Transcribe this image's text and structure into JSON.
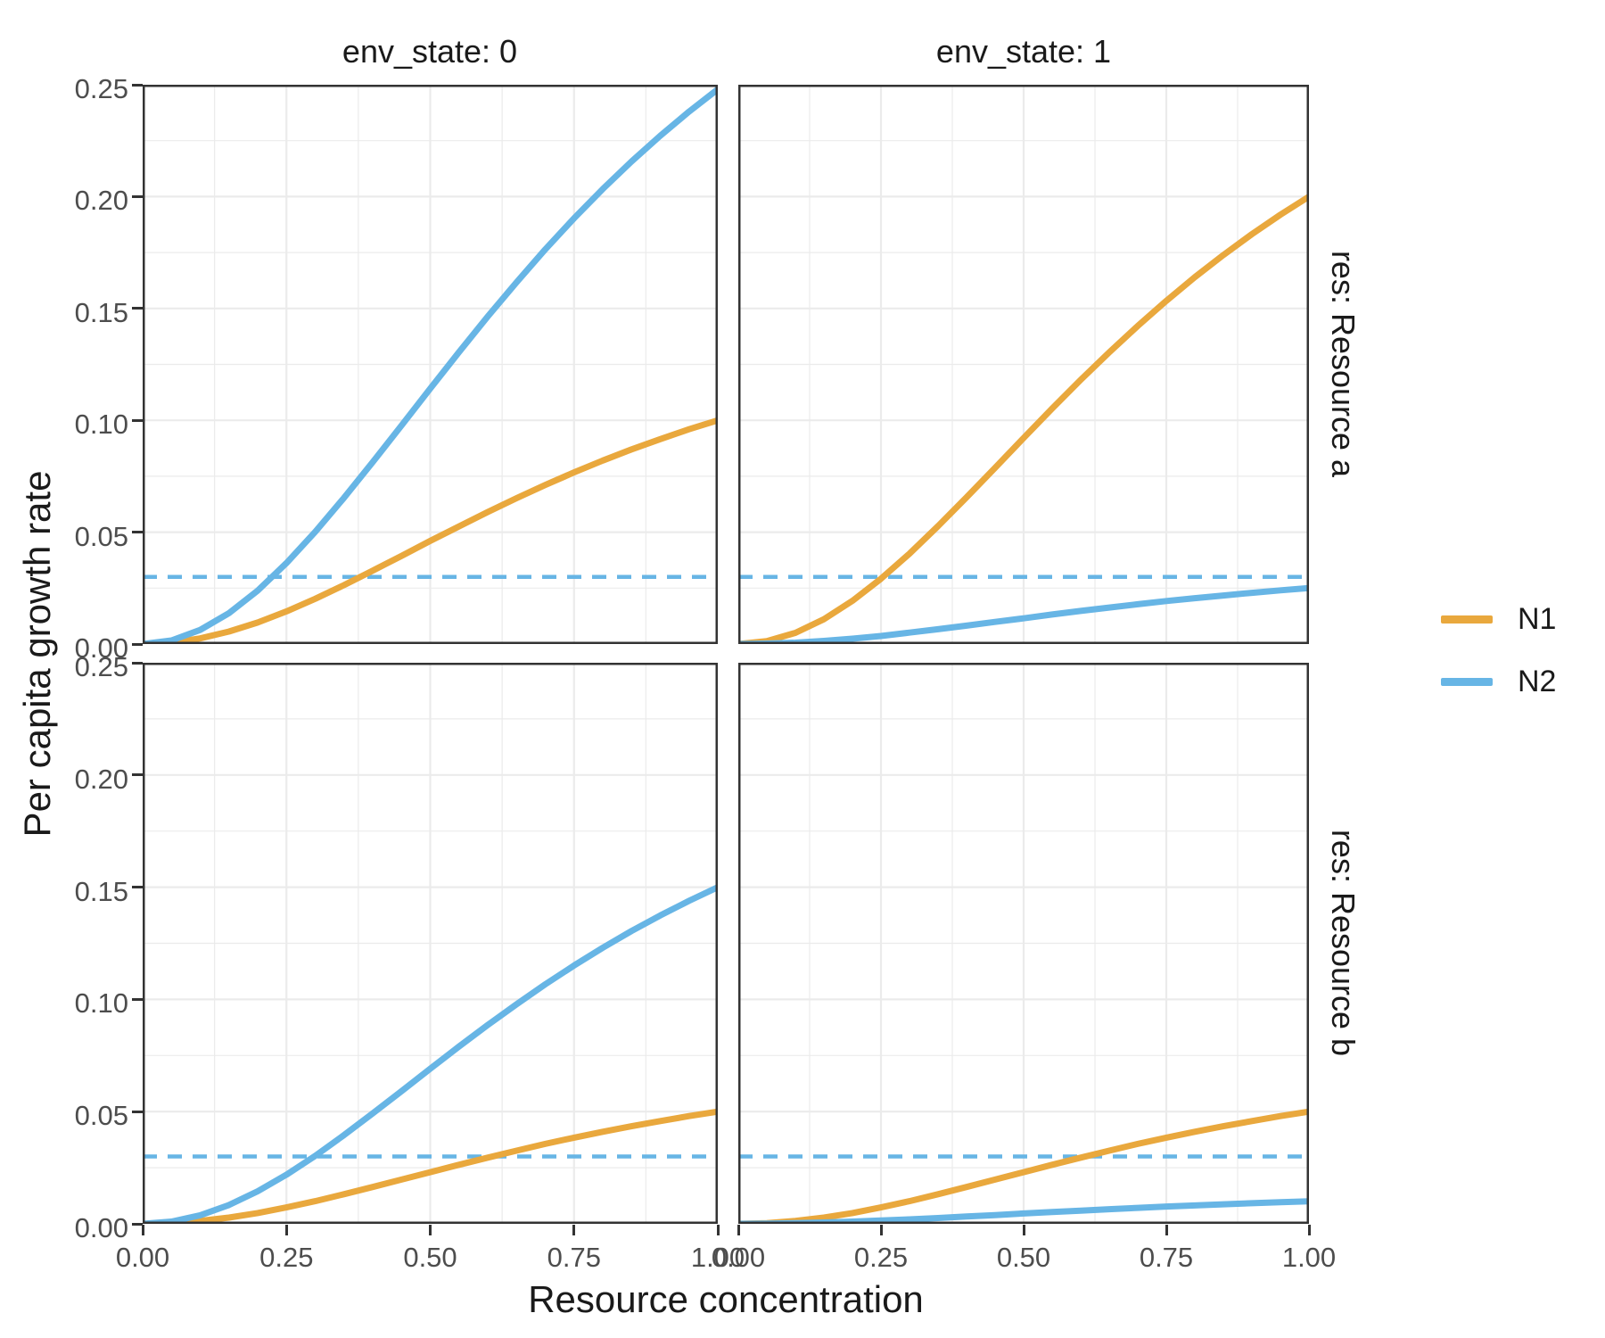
{
  "chart": {
    "y_title": "Per capita growth rate",
    "x_title": "Resource concentration",
    "facets": {
      "cols": [
        "env_state: 0",
        "env_state: 1"
      ],
      "rows": [
        "res: Resource a",
        "res: Resource b"
      ]
    },
    "axes": {
      "x_ticks": [
        "0.00",
        "0.25",
        "0.50",
        "0.75",
        "1.00"
      ],
      "x_tick_values": [
        0,
        0.25,
        0.5,
        0.75,
        1.0
      ],
      "x_minor": [
        0.125,
        0.375,
        0.625,
        0.875
      ],
      "y_ticks": [
        "0.00",
        "0.05",
        "0.10",
        "0.15",
        "0.20",
        "0.25"
      ],
      "y_tick_values": [
        0,
        0.05,
        0.1,
        0.15,
        0.2,
        0.25
      ],
      "y_minor": [
        0.025,
        0.075,
        0.125,
        0.175,
        0.225
      ],
      "x_range": [
        0,
        1
      ],
      "y_range": [
        0,
        0.25
      ],
      "grid": "on"
    },
    "colors": {
      "N1": "#E9A83D",
      "N2": "#67B5E5",
      "grid": "#EBEBEB",
      "border": "#333333",
      "tick_text": "#4D4D4D",
      "title_text": "#1A1A1A"
    },
    "reference_line": {
      "value": 0.03,
      "color": "#67B5E5",
      "style": "dashed"
    }
  },
  "legend": {
    "items": [
      {
        "label": "N1",
        "color": "#E9A83D"
      },
      {
        "label": "N2",
        "color": "#67B5E5"
      }
    ]
  },
  "chart_data": {
    "type": "line",
    "title": "",
    "xlabel": "Resource concentration",
    "ylabel": "Per capita growth rate",
    "xlim": [
      0,
      1
    ],
    "ylim": [
      0,
      0.25
    ],
    "legend_position": "right",
    "x": [
      0,
      0.05,
      0.1,
      0.15,
      0.2,
      0.25,
      0.3,
      0.35,
      0.4,
      0.45,
      0.5,
      0.55,
      0.6,
      0.65,
      0.7,
      0.75,
      0.8,
      0.85,
      0.9,
      0.95,
      1
    ],
    "panels": [
      {
        "id": "env0-resA",
        "col": "env_state: 0",
        "row": "res: Resource a",
        "hline": 0.03,
        "series": [
          {
            "name": "N1",
            "values": [
              0,
              0.0006,
              0.0025,
              0.0056,
              0.0096,
              0.0146,
              0.0202,
              0.0263,
              0.0328,
              0.0394,
              0.0461,
              0.0526,
              0.059,
              0.0652,
              0.0711,
              0.0767,
              0.082,
              0.087,
              0.0916,
              0.096,
              0.1
            ]
          },
          {
            "name": "N2",
            "values": [
              0,
              0.0016,
              0.0063,
              0.0138,
              0.0239,
              0.0362,
              0.0501,
              0.0653,
              0.0813,
              0.0977,
              0.1142,
              0.1305,
              0.1464,
              0.1617,
              0.1764,
              0.1903,
              0.2034,
              0.2157,
              0.2272,
              0.238,
              0.248
            ]
          }
        ]
      },
      {
        "id": "env1-resA",
        "col": "env_state: 1",
        "row": "res: Resource a",
        "hline": 0.03,
        "series": [
          {
            "name": "N1",
            "values": [
              0,
              0.0013,
              0.005,
              0.0111,
              0.0193,
              0.0292,
              0.0404,
              0.0527,
              0.0656,
              0.0788,
              0.0921,
              0.1053,
              0.1181,
              0.1304,
              0.1422,
              0.1534,
              0.164,
              0.1739,
              0.1832,
              0.1919,
              0.2
            ]
          },
          {
            "name": "N2",
            "values": [
              0,
              0.0002,
              0.0006,
              0.0014,
              0.0024,
              0.0036,
              0.0051,
              0.0066,
              0.0082,
              0.0099,
              0.0115,
              0.0132,
              0.0148,
              0.0163,
              0.0178,
              0.0192,
              0.0205,
              0.0217,
              0.0229,
              0.024,
              0.025
            ]
          }
        ]
      },
      {
        "id": "env0-resB",
        "col": "env_state: 0",
        "row": "res: Resource b",
        "hline": 0.03,
        "series": [
          {
            "name": "N1",
            "values": [
              0,
              0.0003,
              0.0013,
              0.0028,
              0.0048,
              0.0073,
              0.0101,
              0.0132,
              0.0164,
              0.0197,
              0.023,
              0.0263,
              0.0295,
              0.0326,
              0.0356,
              0.0384,
              0.041,
              0.0435,
              0.0458,
              0.048,
              0.05
            ]
          },
          {
            "name": "N2",
            "values": [
              0,
              0.001,
              0.0038,
              0.0084,
              0.0145,
              0.0219,
              0.0303,
              0.0395,
              0.0492,
              0.0591,
              0.0691,
              0.079,
              0.0886,
              0.0978,
              0.1067,
              0.1151,
              0.123,
              0.1305,
              0.1374,
              0.1439,
              0.15
            ]
          }
        ]
      },
      {
        "id": "env1-resB",
        "col": "env_state: 1",
        "row": "res: Resource b",
        "hline": 0.03,
        "series": [
          {
            "name": "N1",
            "values": [
              0,
              0.0003,
              0.0013,
              0.0028,
              0.0048,
              0.0073,
              0.0101,
              0.0132,
              0.0164,
              0.0197,
              0.023,
              0.0263,
              0.0295,
              0.0326,
              0.0356,
              0.0384,
              0.041,
              0.0435,
              0.0458,
              0.048,
              0.05
            ]
          },
          {
            "name": "N2",
            "values": [
              0,
              0.0001,
              0.0003,
              0.0006,
              0.001,
              0.0015,
              0.002,
              0.0026,
              0.0033,
              0.0039,
              0.0046,
              0.0053,
              0.0059,
              0.0065,
              0.0071,
              0.0077,
              0.0082,
              0.0087,
              0.0092,
              0.0096,
              0.01
            ]
          }
        ]
      }
    ]
  }
}
